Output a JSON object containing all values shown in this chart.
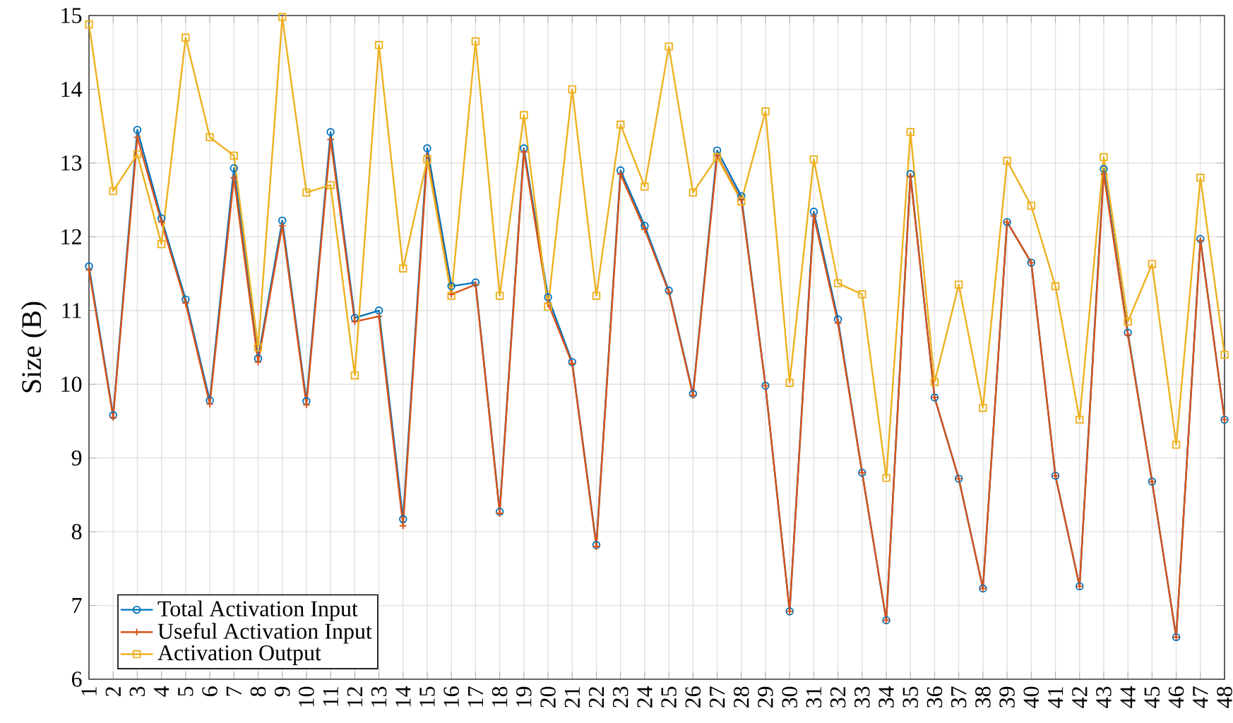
{
  "chart_data": {
    "type": "line",
    "ylabel": "Size (B)",
    "categories": [
      "1",
      "2",
      "3",
      "4",
      "5",
      "6",
      "7",
      "8",
      "9",
      "10",
      "11",
      "12",
      "13",
      "14",
      "15",
      "16",
      "17",
      "18",
      "19",
      "20",
      "21",
      "22",
      "23",
      "24",
      "25",
      "26",
      "27",
      "28",
      "29",
      "30",
      "31",
      "32",
      "33",
      "34",
      "35",
      "36",
      "37",
      "38",
      "39",
      "40",
      "41",
      "42",
      "43",
      "44",
      "45",
      "46",
      "47",
      "48"
    ],
    "series": [
      {
        "name": "Total Activation Input",
        "color": "#0072bd",
        "marker": "circle",
        "values": [
          11.6,
          9.58,
          13.45,
          12.25,
          11.15,
          9.78,
          12.93,
          10.35,
          12.22,
          9.77,
          13.42,
          10.9,
          11.0,
          8.17,
          13.2,
          11.33,
          11.38,
          8.27,
          13.2,
          11.18,
          10.3,
          7.82,
          12.9,
          12.15,
          11.27,
          9.87,
          13.17,
          12.55,
          9.98,
          6.92,
          12.34,
          10.88,
          8.8,
          6.8,
          12.85,
          9.82,
          8.72,
          7.23,
          12.2,
          11.65,
          8.76,
          7.26,
          12.92,
          10.7,
          8.68,
          6.57,
          11.97,
          9.52
        ]
      },
      {
        "name": "Useful Activation Input",
        "color": "#d95319",
        "marker": "cross",
        "values": [
          11.55,
          9.55,
          13.35,
          12.2,
          11.1,
          9.73,
          12.8,
          10.3,
          12.15,
          9.72,
          13.32,
          10.85,
          10.92,
          8.08,
          13.1,
          11.22,
          11.35,
          8.25,
          13.15,
          11.1,
          10.28,
          7.8,
          12.85,
          12.1,
          11.25,
          9.85,
          13.1,
          12.5,
          9.98,
          6.92,
          12.28,
          10.83,
          8.8,
          6.8,
          12.82,
          9.82,
          8.72,
          7.23,
          12.2,
          11.65,
          8.76,
          7.26,
          12.85,
          10.67,
          8.68,
          6.57,
          11.95,
          9.52
        ]
      },
      {
        "name": "Activation Output",
        "color": "#edb120",
        "marker": "square",
        "values": [
          14.88,
          12.62,
          13.12,
          11.9,
          14.7,
          13.35,
          13.1,
          10.5,
          14.98,
          12.6,
          12.7,
          10.12,
          14.6,
          11.57,
          13.05,
          11.2,
          14.65,
          11.2,
          13.65,
          11.05,
          14.0,
          11.2,
          13.52,
          12.68,
          14.58,
          12.6,
          13.08,
          12.48,
          13.7,
          10.02,
          13.05,
          11.37,
          11.22,
          8.73,
          13.42,
          10.03,
          11.35,
          9.68,
          13.03,
          12.42,
          11.33,
          9.52,
          13.08,
          10.85,
          11.63,
          9.18,
          12.8,
          10.4
        ]
      }
    ],
    "ylim": [
      6,
      15
    ],
    "yticks": [
      6,
      7,
      8,
      9,
      10,
      11,
      12,
      13,
      14,
      15
    ],
    "grid": true,
    "legend": "bottom left"
  }
}
